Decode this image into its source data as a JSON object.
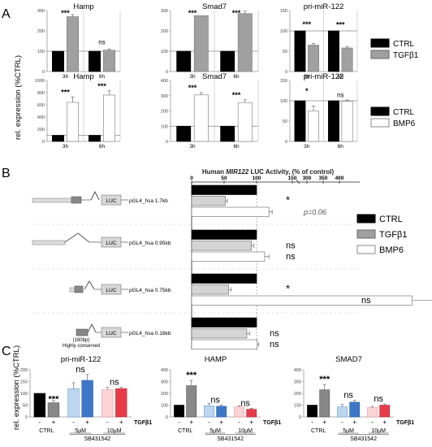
{
  "panels": {
    "A": "A",
    "B": "B",
    "C": "C"
  },
  "colors": {
    "ctrl": "#000000",
    "tgf": "#a0a0a0",
    "bmp6": "#ffffff",
    "tgf_light": "#d4d4d4",
    "c_tgf": "#bcd6ef",
    "c_tgf2": "#3d78c8",
    "c_sb": "#fcd3d6",
    "c_sb2": "#e83a49"
  },
  "panel_a": {
    "ylabel": "rel. expression (%CTRL)",
    "legend_tgf": [
      {
        "label": "CTRL",
        "color": "#000000"
      },
      {
        "label": "TGFβ1",
        "color": "#a0a0a0"
      }
    ],
    "legend_bmp": [
      {
        "label": "CTRL",
        "color": "#000000"
      },
      {
        "label": "BMP6",
        "color": "#ffffff"
      }
    ]
  },
  "panel_b": {
    "title": "Human MIR122 LUC Activity, (% of control)",
    "title_pre": "Human ",
    "title_gene": "MIR122",
    "title_post": " LUC Activity, (% of control)",
    "axis_ticks": [
      "0",
      "50",
      "100",
      "150",
      "300",
      "350",
      "400"
    ],
    "constructs": [
      "pGL4_hsa 1.7kb",
      "pGL4_hsa 0.95kb",
      "pGL4_hsa 0.75kb",
      "pGL4_hsa 0.18kb"
    ],
    "luc": "LUC",
    "conserved_note": [
      "(180bp)",
      "Highly conserved"
    ],
    "legend": [
      {
        "label": "CTRL",
        "color": "#000000"
      },
      {
        "label": "TGFβ1",
        "color": "#a0a0a0"
      },
      {
        "label": "BMP6",
        "color": "#ffffff"
      }
    ]
  },
  "panel_c": {
    "ylabel": "rel. expression (%CTRL)",
    "xcats": [
      "CTRL",
      "5μM",
      "10μM"
    ],
    "signs": [
      "-",
      "+"
    ],
    "tgf_label": "TGFβ1",
    "inhibitor": "SB431542"
  },
  "chart_data": [
    {
      "id": "A-Hamp-TGF",
      "type": "bar",
      "title": "Hamp",
      "categories": [
        "3h",
        "6h"
      ],
      "ylim": [
        0,
        300
      ],
      "yticks": [
        0,
        100,
        200,
        300
      ],
      "series": [
        {
          "name": "CTRL",
          "values": [
            100,
            100
          ]
        },
        {
          "name": "TGFβ1",
          "values": [
            270,
            105
          ]
        }
      ],
      "annotations": [
        "***",
        "ns"
      ]
    },
    {
      "id": "A-Smad7-TGF",
      "type": "bar",
      "title": "Smad7",
      "categories": [
        "3h",
        "6h"
      ],
      "ylim": [
        0,
        300
      ],
      "yticks": [
        0,
        100,
        200,
        300
      ],
      "series": [
        {
          "name": "CTRL",
          "values": [
            100,
            100
          ]
        },
        {
          "name": "TGFβ1",
          "values": [
            275,
            285
          ]
        }
      ],
      "annotations": [
        "***",
        "***"
      ]
    },
    {
      "id": "A-mir-TGF",
      "type": "bar",
      "title": "pri-miR-122",
      "categories": [
        "3h",
        "6h"
      ],
      "ylim": [
        0,
        150
      ],
      "yticks": [
        0,
        50,
        100,
        150
      ],
      "series": [
        {
          "name": "CTRL",
          "values": [
            100,
            100
          ]
        },
        {
          "name": "TGFβ1",
          "values": [
            65,
            58
          ]
        }
      ],
      "annotations": [
        "***",
        "***"
      ]
    },
    {
      "id": "A-Hamp-BMP",
      "type": "bar",
      "title": "Hamp",
      "categories": [
        "3h",
        "6h"
      ],
      "ylim": [
        0,
        1000
      ],
      "yticks": [
        0,
        200,
        400,
        600,
        800,
        1000
      ],
      "series": [
        {
          "name": "CTRL",
          "values": [
            100,
            100
          ]
        },
        {
          "name": "BMP6",
          "values": [
            640,
            760
          ]
        }
      ],
      "annotations": [
        "***",
        "***"
      ]
    },
    {
      "id": "A-Smad7-BMP",
      "type": "bar",
      "title": "Smad7",
      "categories": [
        "3h",
        "6h"
      ],
      "ylim": [
        0,
        400
      ],
      "yticks": [
        0,
        100,
        200,
        300,
        400
      ],
      "series": [
        {
          "name": "CTRL",
          "values": [
            100,
            100
          ]
        },
        {
          "name": "BMP6",
          "values": [
            305,
            255
          ]
        }
      ],
      "annotations": [
        "***",
        "***"
      ]
    },
    {
      "id": "A-mir-BMP",
      "type": "bar",
      "title": "pri-miR-122",
      "categories": [
        "3h",
        "6h"
      ],
      "ylim": [
        0,
        150
      ],
      "yticks": [
        0,
        50,
        100,
        150
      ],
      "series": [
        {
          "name": "CTRL",
          "values": [
            100,
            100
          ]
        },
        {
          "name": "BMP6",
          "values": [
            75,
            99
          ]
        }
      ],
      "annotations": [
        "*",
        "ns"
      ]
    },
    {
      "id": "B-luc",
      "type": "bar",
      "orientation": "horizontal",
      "title": "Human MIR122 LUC Activity, (% of control)",
      "categories": [
        "pGL4_hsa 1.7kb",
        "pGL4_hsa 0.95kb",
        "pGL4_hsa 0.75kb",
        "pGL4_hsa 0.18kb"
      ],
      "series": [
        {
          "name": "CTRL",
          "values": [
            100,
            100,
            100,
            100
          ]
        },
        {
          "name": "TGFβ1",
          "values": [
            52,
            92,
            57,
            85
          ]
        },
        {
          "name": "BMP6",
          "values": [
            123,
            115,
            390,
            101
          ]
        }
      ],
      "annotations": [
        [
          "*",
          "p=0.06"
        ],
        [
          "ns",
          "ns"
        ],
        [
          "*",
          "ns"
        ],
        [
          "ns",
          "ns"
        ]
      ]
    },
    {
      "id": "C-mir",
      "type": "bar",
      "title": "pri-miR-122",
      "categories": [
        "CTRL -",
        "CTRL +",
        "5μM -",
        "5μM +",
        "10μM -",
        "10μM +"
      ],
      "ylim": [
        0,
        200
      ],
      "yticks": [
        0,
        50,
        100,
        150,
        200
      ],
      "values": [
        100,
        60,
        120,
        155,
        115,
        120
      ],
      "annotations": [
        "***",
        "ns",
        "ns"
      ]
    },
    {
      "id": "C-hamp",
      "type": "bar",
      "title": "HAMP",
      "categories": [
        "CTRL -",
        "CTRL +",
        "5μM -",
        "5μM +",
        "10μM -",
        "10μM +"
      ],
      "ylim": [
        0,
        400
      ],
      "yticks": [
        0,
        100,
        200,
        300,
        400
      ],
      "values": [
        100,
        265,
        95,
        90,
        85,
        65
      ],
      "annotations": [
        "***",
        "ns",
        "ns"
      ]
    },
    {
      "id": "C-smad7",
      "type": "bar",
      "title": "SMAD7",
      "categories": [
        "CTRL -",
        "CTRL +",
        "5μM -",
        "5μM +",
        "10μM -",
        "10μM +"
      ],
      "ylim": [
        0,
        400
      ],
      "yticks": [
        0,
        100,
        200,
        300,
        400
      ],
      "values": [
        100,
        230,
        85,
        125,
        80,
        100
      ],
      "annotations": [
        "***",
        "ns",
        "ns"
      ]
    }
  ]
}
